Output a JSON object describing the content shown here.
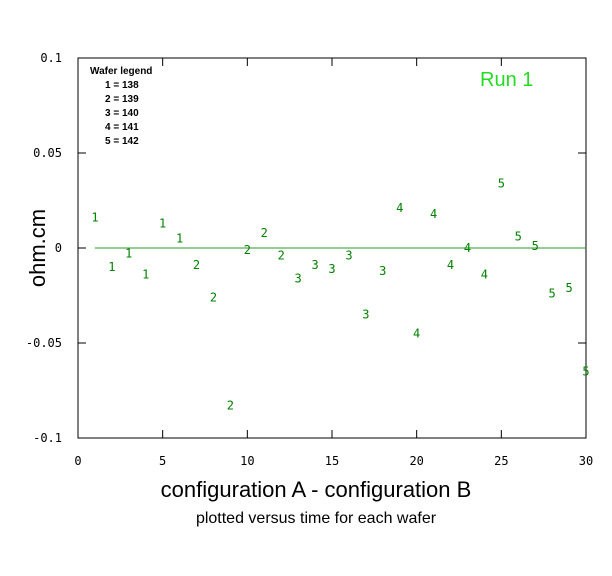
{
  "chart_data": {
    "type": "scatter",
    "xlabel": "configuration A - configuration B",
    "subtitle": "plotted versus time for each wafer",
    "ylabel": "ohm.cm",
    "annotation": "Run 1",
    "xlim": [
      0,
      30
    ],
    "ylim": [
      -0.1,
      0.1
    ],
    "x_ticks": [
      0,
      5,
      10,
      15,
      20,
      25,
      30
    ],
    "x_tick_labels": [
      "0",
      "5",
      "10",
      "15",
      "20",
      "25",
      "30"
    ],
    "y_ticks": [
      -0.1,
      -0.05,
      0,
      0.05,
      0.1
    ],
    "y_tick_labels": [
      "-0.1",
      "-0.05",
      "0",
      "0.05",
      "0.1"
    ],
    "reference_line_y": 0,
    "grid": false,
    "colors": {
      "points": "#008000",
      "annotation": "#22dd22",
      "reference_line": "#2a9a2a",
      "axes": "#000000"
    },
    "legend": {
      "title": "Wafer legend",
      "placement": "top-left",
      "entries": [
        "1 = 138",
        "2 = 139",
        "3 = 140",
        "4 = 141",
        "5 = 142"
      ]
    },
    "points": [
      {
        "x": 1,
        "y": 0.016,
        "label": "1"
      },
      {
        "x": 2,
        "y": -0.01,
        "label": "1"
      },
      {
        "x": 3,
        "y": -0.003,
        "label": "1"
      },
      {
        "x": 4,
        "y": -0.014,
        "label": "1"
      },
      {
        "x": 5,
        "y": 0.013,
        "label": "1"
      },
      {
        "x": 6,
        "y": 0.005,
        "label": "1"
      },
      {
        "x": 7,
        "y": -0.009,
        "label": "2"
      },
      {
        "x": 8,
        "y": -0.026,
        "label": "2"
      },
      {
        "x": 9,
        "y": -0.083,
        "label": "2"
      },
      {
        "x": 10,
        "y": -0.001,
        "label": "2"
      },
      {
        "x": 11,
        "y": 0.008,
        "label": "2"
      },
      {
        "x": 12,
        "y": -0.004,
        "label": "2"
      },
      {
        "x": 13,
        "y": -0.016,
        "label": "3"
      },
      {
        "x": 14,
        "y": -0.009,
        "label": "3"
      },
      {
        "x": 15,
        "y": -0.011,
        "label": "3"
      },
      {
        "x": 16,
        "y": -0.004,
        "label": "3"
      },
      {
        "x": 17,
        "y": -0.035,
        "label": "3"
      },
      {
        "x": 18,
        "y": -0.012,
        "label": "3"
      },
      {
        "x": 19,
        "y": 0.021,
        "label": "4"
      },
      {
        "x": 20,
        "y": -0.045,
        "label": "4"
      },
      {
        "x": 21,
        "y": 0.018,
        "label": "4"
      },
      {
        "x": 22,
        "y": -0.009,
        "label": "4"
      },
      {
        "x": 23,
        "y": 0.0,
        "label": "4"
      },
      {
        "x": 24,
        "y": -0.014,
        "label": "4"
      },
      {
        "x": 25,
        "y": 0.034,
        "label": "5"
      },
      {
        "x": 26,
        "y": 0.006,
        "label": "5"
      },
      {
        "x": 27,
        "y": 0.001,
        "label": "5"
      },
      {
        "x": 28,
        "y": -0.024,
        "label": "5"
      },
      {
        "x": 29,
        "y": -0.021,
        "label": "5"
      },
      {
        "x": 30,
        "y": -0.065,
        "label": "5"
      }
    ]
  }
}
